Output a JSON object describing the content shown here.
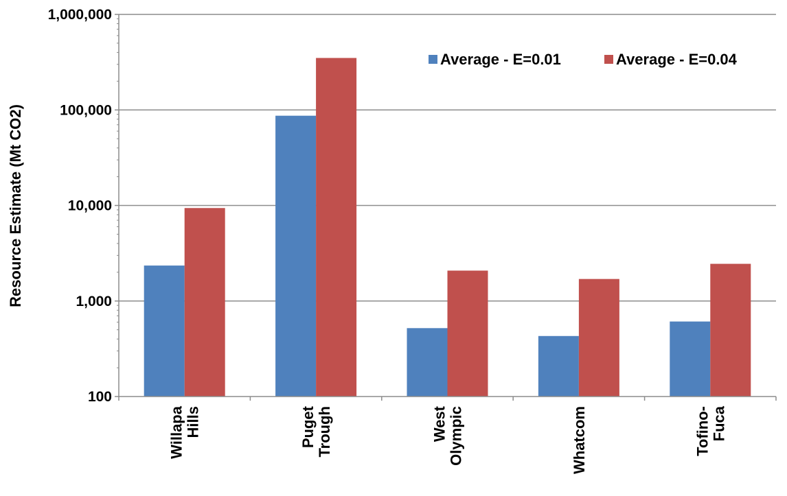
{
  "chart_data": {
    "type": "bar",
    "ylabel": "Resource Estimate (Mt CO2)",
    "xlabel": "",
    "yscale": "log",
    "ylim": [
      100,
      1000000
    ],
    "yticks": [
      100,
      1000,
      10000,
      100000,
      1000000
    ],
    "ytick_labels": [
      "100",
      "1,000",
      "10,000",
      "100,000",
      "1,000,000"
    ],
    "grid": "horizontal major gridlines",
    "legend_position": "top-right",
    "categories": [
      [
        "Willapa",
        "Hills"
      ],
      [
        "Puget",
        "Trough"
      ],
      [
        "West",
        "Olympic"
      ],
      [
        "Whatcom"
      ],
      [
        "Tofino-",
        "Fuca"
      ]
    ],
    "series": [
      {
        "name": "Average - E=0.01",
        "color": "#4f81bd",
        "values": [
          2350,
          87000,
          520,
          430,
          610
        ]
      },
      {
        "name": "Average - E=0.04",
        "color": "#c0504d",
        "values": [
          9400,
          350000,
          2080,
          1700,
          2450
        ]
      }
    ]
  }
}
